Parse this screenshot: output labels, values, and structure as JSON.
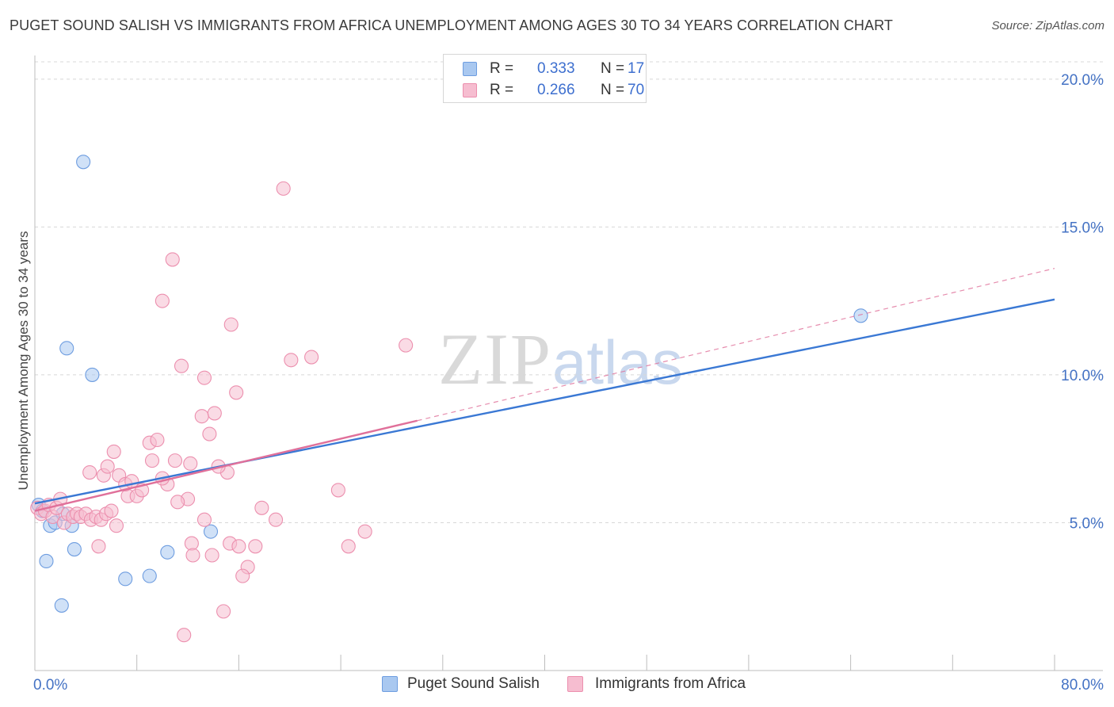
{
  "header": {
    "title": "PUGET SOUND SALISH VS IMMIGRANTS FROM AFRICA UNEMPLOYMENT AMONG AGES 30 TO 34 YEARS CORRELATION CHART",
    "source": "Source: ZipAtlas.com"
  },
  "watermark": {
    "zip": "ZIP",
    "atlas": "atlas"
  },
  "legend": {
    "rows": [
      {
        "r_label": "R =",
        "r_value": "0.333",
        "n_label": "N =",
        "n_value": "17"
      },
      {
        "r_label": "R =",
        "r_value": "0.266",
        "n_label": "N =",
        "n_value": "70"
      }
    ]
  },
  "bottom_legend": {
    "series1": "Puget Sound Salish",
    "series2": "Immigrants from Africa"
  },
  "colors": {
    "blue_fill": "#a9c8f0",
    "blue_stroke": "#6e9de0",
    "blue_line": "#3a78d4",
    "pink_fill": "#f6bdd0",
    "pink_stroke": "#ec8fae",
    "pink_line": "#e0709a",
    "grid": "#d8d8d8",
    "tick_label": "#4472c4"
  },
  "chart_data": {
    "type": "scatter",
    "title": "PUGET SOUND SALISH VS IMMIGRANTS FROM AFRICA UNEMPLOYMENT AMONG AGES 30 TO 34 YEARS CORRELATION CHART",
    "xlabel": "",
    "ylabel": "Unemployment Among Ages 30 to 34 years",
    "xlim": [
      0,
      80
    ],
    "ylim": [
      0,
      20.8
    ],
    "x_tick_labels": [
      "0.0%",
      "80.0%"
    ],
    "y_ticks": [
      5,
      10,
      15,
      20
    ],
    "y_tick_labels": [
      "5.0%",
      "10.0%",
      "15.0%",
      "20.0%"
    ],
    "series": [
      {
        "name": "Puget Sound Salish",
        "R": 0.333,
        "N": 17,
        "points": [
          [
            0.3,
            5.6
          ],
          [
            0.6,
            5.4
          ],
          [
            1.2,
            4.9
          ],
          [
            1.6,
            5.0
          ],
          [
            2.2,
            5.3
          ],
          [
            2.9,
            4.9
          ],
          [
            0.9,
            3.7
          ],
          [
            3.1,
            4.1
          ],
          [
            2.1,
            2.2
          ],
          [
            3.8,
            17.2
          ],
          [
            2.5,
            10.9
          ],
          [
            4.5,
            10.0
          ],
          [
            7.1,
            3.1
          ],
          [
            9.0,
            3.2
          ],
          [
            10.4,
            4.0
          ],
          [
            13.8,
            4.7
          ],
          [
            64.8,
            12.0
          ]
        ],
        "trend": {
          "x0": 0,
          "y0": 5.65,
          "x1": 80,
          "y1": 12.55,
          "style": "solid"
        }
      },
      {
        "name": "Immigrants from Africa",
        "R": 0.266,
        "N": 70,
        "points": [
          [
            0.2,
            5.5
          ],
          [
            0.5,
            5.3
          ],
          [
            0.8,
            5.4
          ],
          [
            1.1,
            5.6
          ],
          [
            1.4,
            5.2
          ],
          [
            1.7,
            5.5
          ],
          [
            2.0,
            5.8
          ],
          [
            2.3,
            5.0
          ],
          [
            2.6,
            5.3
          ],
          [
            3.0,
            5.2
          ],
          [
            3.3,
            5.3
          ],
          [
            3.6,
            5.2
          ],
          [
            4.0,
            5.3
          ],
          [
            4.4,
            5.1
          ],
          [
            4.8,
            5.2
          ],
          [
            5.2,
            5.1
          ],
          [
            5.6,
            5.3
          ],
          [
            6.0,
            5.4
          ],
          [
            6.4,
            4.9
          ],
          [
            7.3,
            5.9
          ],
          [
            8.0,
            5.9
          ],
          [
            4.3,
            6.7
          ],
          [
            5.4,
            6.6
          ],
          [
            5.7,
            6.9
          ],
          [
            6.6,
            6.6
          ],
          [
            7.1,
            6.3
          ],
          [
            7.6,
            6.4
          ],
          [
            8.4,
            6.1
          ],
          [
            9.0,
            7.7
          ],
          [
            9.2,
            7.1
          ],
          [
            9.6,
            7.8
          ],
          [
            10.4,
            6.3
          ],
          [
            11.0,
            7.1
          ],
          [
            12.0,
            5.8
          ],
          [
            11.2,
            5.7
          ],
          [
            13.3,
            5.1
          ],
          [
            6.2,
            7.4
          ],
          [
            12.2,
            7.0
          ],
          [
            13.1,
            8.6
          ],
          [
            13.7,
            8.0
          ],
          [
            14.1,
            8.7
          ],
          [
            15.1,
            6.7
          ],
          [
            10.0,
            6.5
          ],
          [
            14.4,
            6.9
          ],
          [
            15.8,
            9.4
          ],
          [
            11.5,
            10.3
          ],
          [
            13.3,
            9.9
          ],
          [
            10.0,
            12.5
          ],
          [
            10.8,
            13.9
          ],
          [
            15.4,
            11.7
          ],
          [
            20.1,
            10.5
          ],
          [
            21.7,
            10.6
          ],
          [
            29.1,
            11.0
          ],
          [
            19.5,
            16.3
          ],
          [
            17.8,
            5.5
          ],
          [
            18.9,
            5.1
          ],
          [
            23.8,
            6.1
          ],
          [
            24.6,
            4.2
          ],
          [
            25.9,
            4.7
          ],
          [
            12.3,
            4.3
          ],
          [
            15.3,
            4.3
          ],
          [
            16.0,
            4.2
          ],
          [
            17.3,
            4.2
          ],
          [
            12.4,
            3.9
          ],
          [
            13.9,
            3.9
          ],
          [
            16.7,
            3.5
          ],
          [
            16.3,
            3.2
          ],
          [
            14.8,
            2.0
          ],
          [
            11.7,
            1.2
          ],
          [
            5.0,
            4.2
          ]
        ],
        "trend": {
          "x0": 0,
          "y0": 5.4,
          "x1": 30,
          "y1": 8.45,
          "dashed_to_x": 80,
          "dashed_to_y": 13.6
        }
      }
    ]
  }
}
